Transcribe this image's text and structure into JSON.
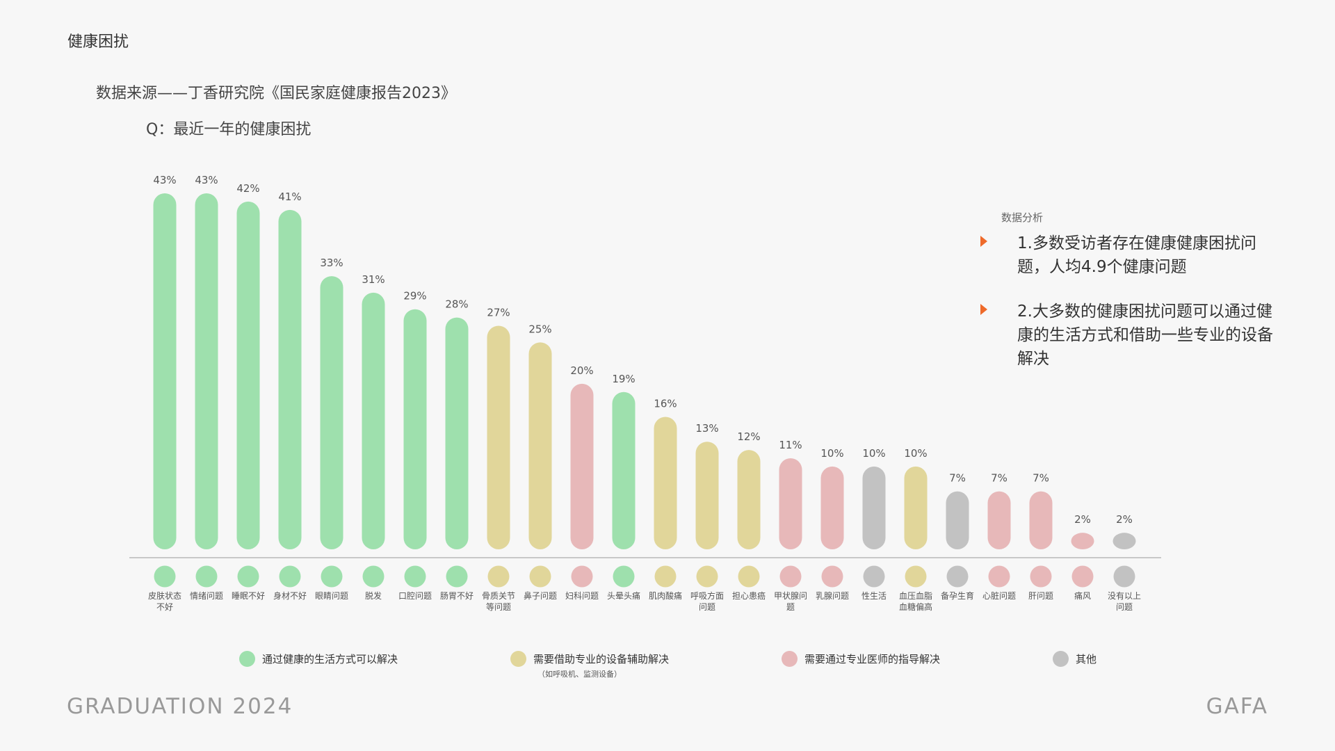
{
  "page": {
    "title": "健康困扰",
    "source": "数据来源——丁香研究院《国民家庭健康报告2023》",
    "question": "Q：最近一年的健康困扰"
  },
  "colors": {
    "green": "#9ee0ad",
    "yellow": "#e1d69a",
    "pink": "#e7b8b9",
    "gray": "#c2c2c2",
    "arrow": "#ee6a2a"
  },
  "chart_data": {
    "type": "bar",
    "title": "Q：最近一年的健康困扰",
    "ylabel": "",
    "xlabel": "",
    "ylim": [
      0,
      43
    ],
    "categories": [
      {
        "label": "皮肤状态不好",
        "lines": [
          "皮肤状态",
          "不好"
        ],
        "value": 43,
        "group": "green"
      },
      {
        "label": "情绪问题",
        "lines": [
          "情绪问题"
        ],
        "value": 43,
        "group": "green"
      },
      {
        "label": "睡眠不好",
        "lines": [
          "睡眠不好"
        ],
        "value": 42,
        "group": "green"
      },
      {
        "label": "身材不好",
        "lines": [
          "身材不好"
        ],
        "value": 41,
        "group": "green"
      },
      {
        "label": "眼睛问题",
        "lines": [
          "眼睛问题"
        ],
        "value": 33,
        "group": "green"
      },
      {
        "label": "脱发",
        "lines": [
          "脱发"
        ],
        "value": 31,
        "group": "green"
      },
      {
        "label": "口腔问题",
        "lines": [
          "口腔问题"
        ],
        "value": 29,
        "group": "green"
      },
      {
        "label": "肠胃不好",
        "lines": [
          "肠胃不好"
        ],
        "value": 28,
        "group": "green"
      },
      {
        "label": "骨质关节等问题",
        "lines": [
          "骨质关节",
          "等问题"
        ],
        "value": 27,
        "group": "yellow"
      },
      {
        "label": "鼻子问题",
        "lines": [
          "鼻子问题"
        ],
        "value": 25,
        "group": "yellow"
      },
      {
        "label": "妇科问题",
        "lines": [
          "妇科问题"
        ],
        "value": 20,
        "group": "pink"
      },
      {
        "label": "头晕头痛",
        "lines": [
          "头晕头痛"
        ],
        "value": 19,
        "group": "green"
      },
      {
        "label": "肌肉酸痛",
        "lines": [
          "肌肉酸痛"
        ],
        "value": 16,
        "group": "yellow"
      },
      {
        "label": "呼吸方面问题",
        "lines": [
          "呼吸方面",
          "问题"
        ],
        "value": 13,
        "group": "yellow"
      },
      {
        "label": "担心患癌",
        "lines": [
          "担心患癌"
        ],
        "value": 12,
        "group": "yellow"
      },
      {
        "label": "甲状腺问题",
        "lines": [
          "甲状腺问",
          "题"
        ],
        "value": 11,
        "group": "pink"
      },
      {
        "label": "乳腺问题",
        "lines": [
          "乳腺问题"
        ],
        "value": 10,
        "group": "pink"
      },
      {
        "label": "性生活",
        "lines": [
          "性生活"
        ],
        "value": 10,
        "group": "gray"
      },
      {
        "label": "血压血脂血糖偏高",
        "lines": [
          "血压血脂",
          "血糖偏高"
        ],
        "value": 10,
        "group": "yellow"
      },
      {
        "label": "备孕生育",
        "lines": [
          "备孕生育"
        ],
        "value": 7,
        "group": "gray"
      },
      {
        "label": "心脏问题",
        "lines": [
          "心脏问题"
        ],
        "value": 7,
        "group": "pink"
      },
      {
        "label": "肝问题",
        "lines": [
          "肝问题"
        ],
        "value": 7,
        "group": "pink"
      },
      {
        "label": "痛风",
        "lines": [
          "痛风"
        ],
        "value": 2,
        "group": "pink"
      },
      {
        "label": "没有以上问题",
        "lines": [
          "没有以上",
          "问题"
        ],
        "value": 2,
        "group": "gray"
      }
    ],
    "value_suffix": "%",
    "legend": [
      {
        "group": "green",
        "text": "通过健康的生活方式可以解决",
        "sub": ""
      },
      {
        "group": "yellow",
        "text": "需要借助专业的设备辅助解决",
        "sub": "（如呼吸机、监测设备）"
      },
      {
        "group": "pink",
        "text": "需要通过专业医师的指导解决",
        "sub": ""
      },
      {
        "group": "gray",
        "text": "其他",
        "sub": ""
      }
    ]
  },
  "analysis": {
    "title": "数据分析",
    "points": [
      "1.多数受访者存在健康健康困扰问题，人均4.9个健康问题",
      "2.大多数的健康困扰问题可以通过健康的生活方式和借助一些专业的设备解决"
    ]
  },
  "footer": {
    "left": "GRADUATION 2024",
    "right": "GAFA"
  }
}
